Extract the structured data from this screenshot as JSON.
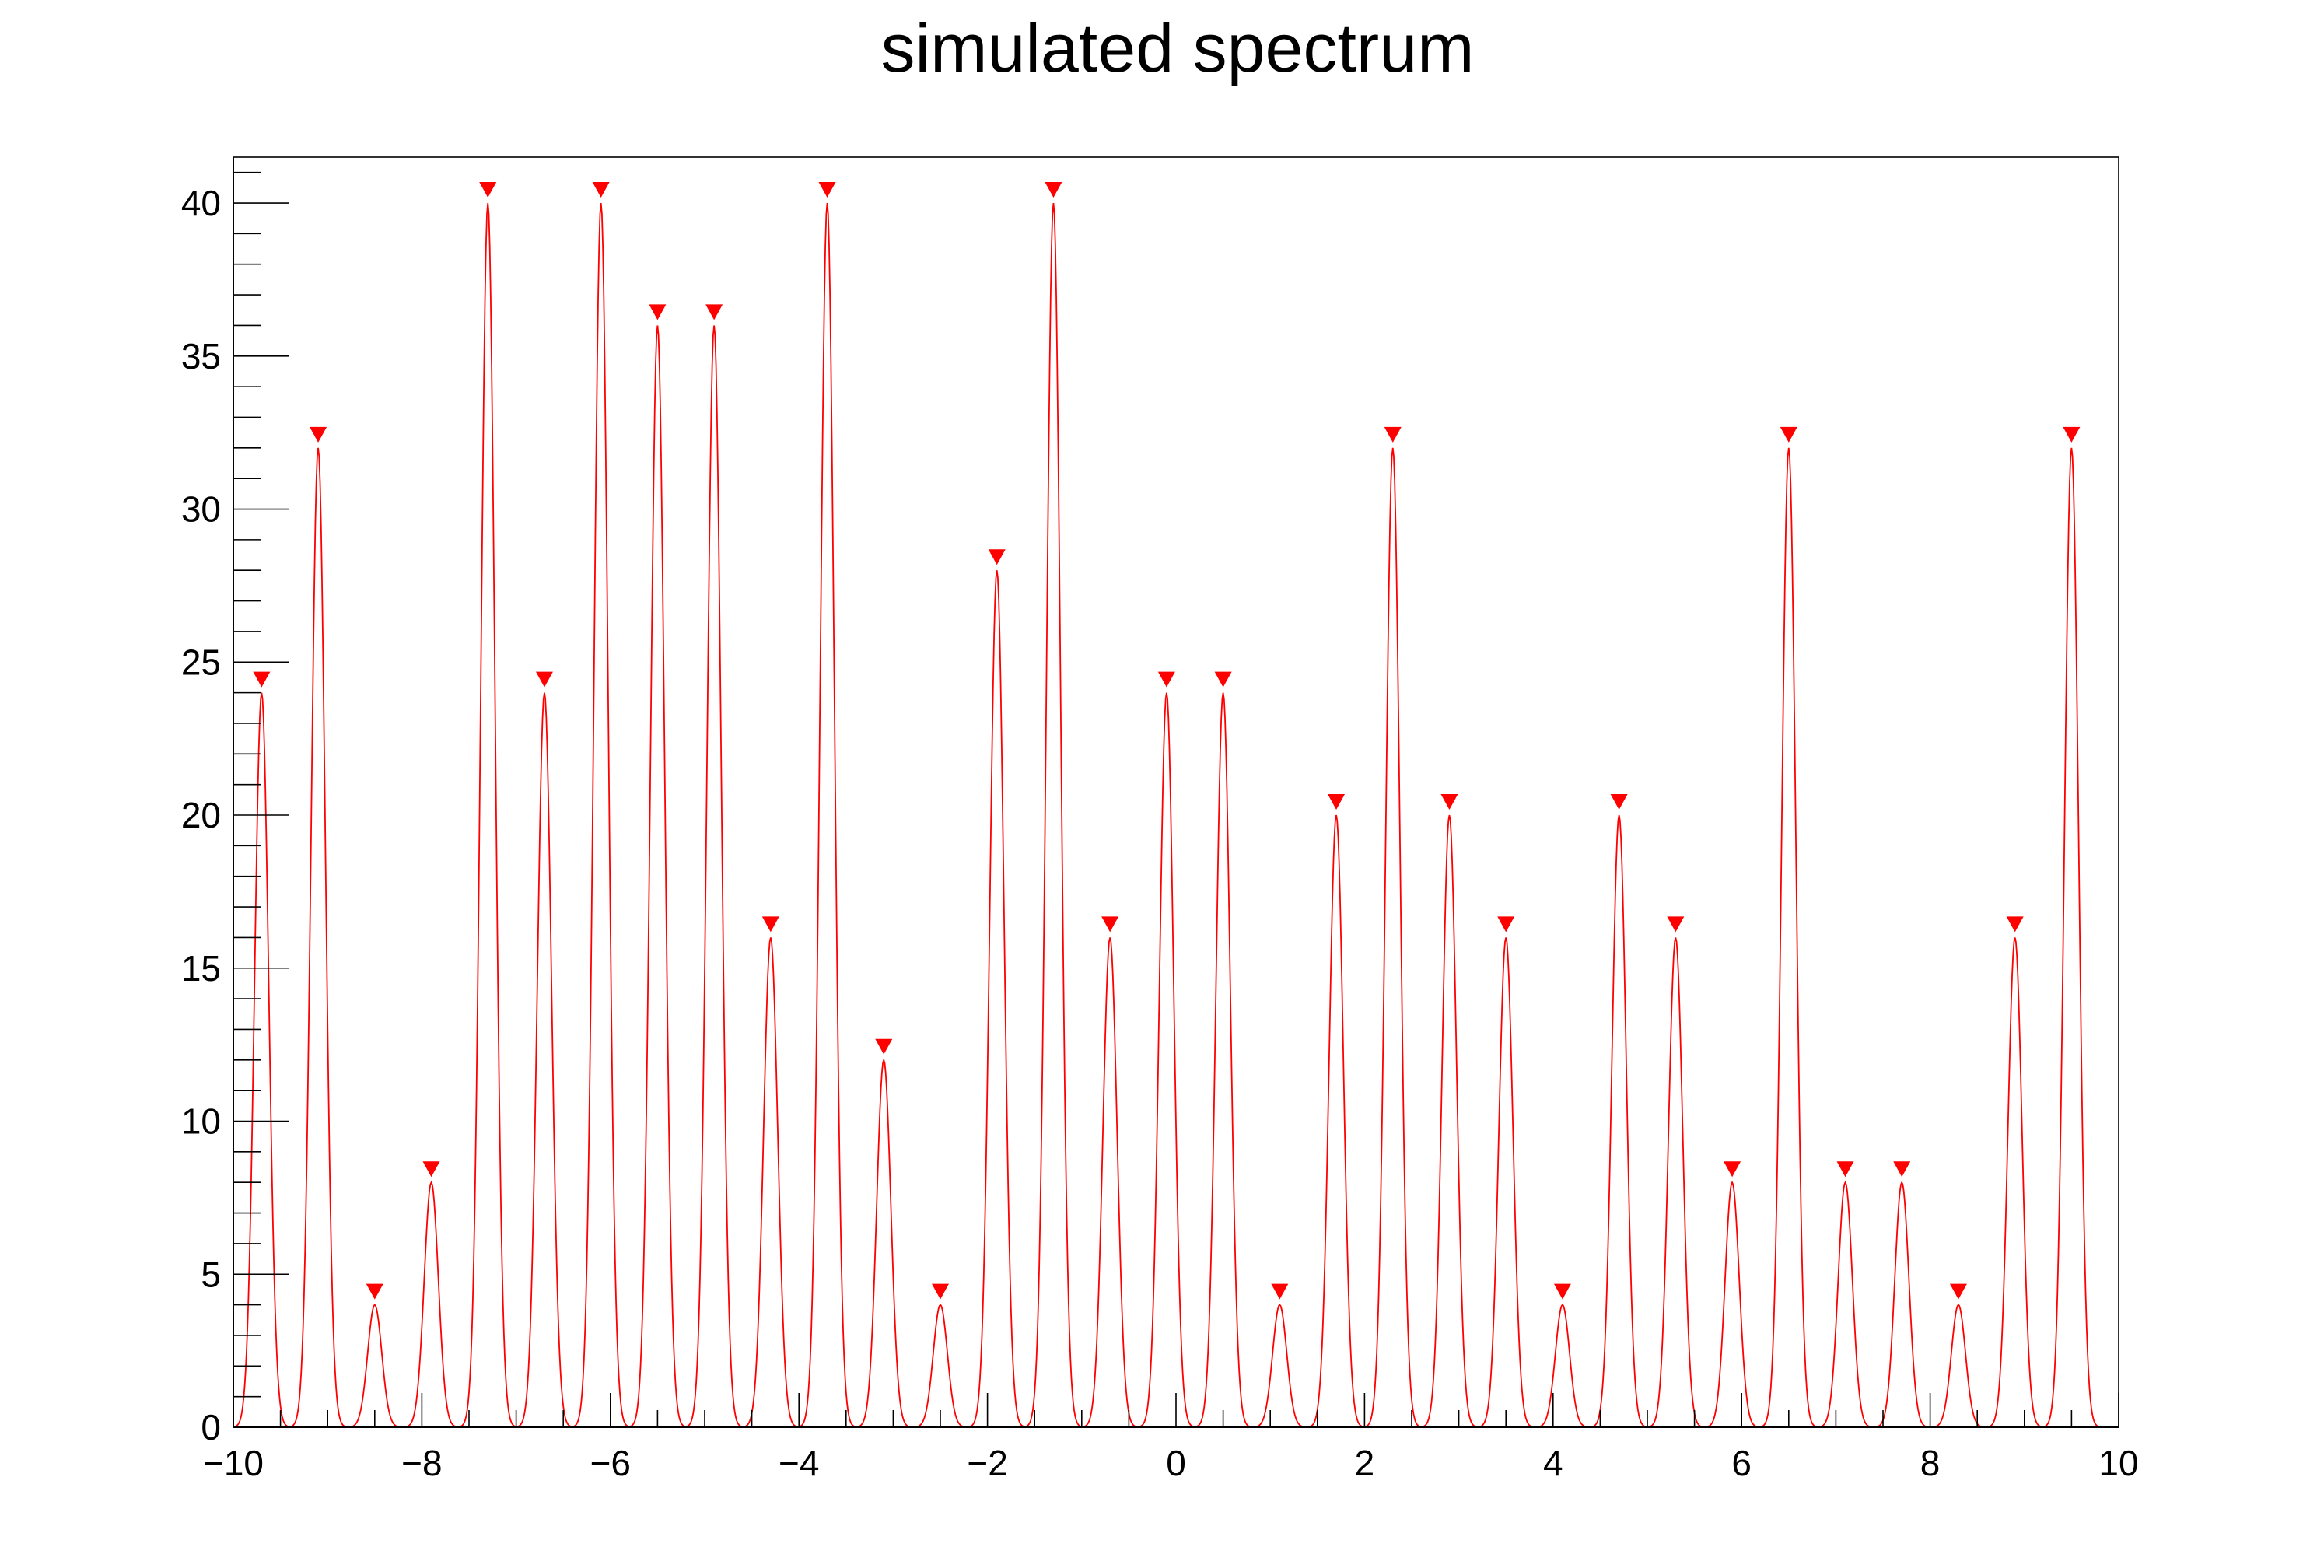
{
  "chart_data": {
    "type": "line",
    "title": "simulated spectrum",
    "xlabel": "",
    "ylabel": "",
    "xlim": [
      -10,
      10
    ],
    "ylim": [
      0,
      41.5
    ],
    "x_ticks": [
      -10,
      -8,
      -6,
      -4,
      -2,
      0,
      2,
      4,
      6,
      8,
      10
    ],
    "x_tick_labels": [
      "−10",
      "−8",
      "−6",
      "−4",
      "−2",
      "0",
      "2",
      "4",
      "6",
      "8",
      "10"
    ],
    "y_ticks": [
      0,
      5,
      10,
      15,
      20,
      25,
      30,
      35,
      40
    ],
    "y_tick_labels": [
      "0",
      "5",
      "10",
      "15",
      "20",
      "25",
      "30",
      "35",
      "40"
    ],
    "grid": false,
    "line_color": "#ff0000",
    "marker_color": "#ff0000",
    "peak_sigma": 0.075,
    "peaks": [
      {
        "x": -9.7,
        "y": 24
      },
      {
        "x": -9.1,
        "y": 32
      },
      {
        "x": -8.5,
        "y": 4
      },
      {
        "x": -7.9,
        "y": 8
      },
      {
        "x": -7.3,
        "y": 40
      },
      {
        "x": -6.7,
        "y": 24
      },
      {
        "x": -6.1,
        "y": 40
      },
      {
        "x": -5.5,
        "y": 36
      },
      {
        "x": -4.9,
        "y": 36
      },
      {
        "x": -4.3,
        "y": 16
      },
      {
        "x": -3.7,
        "y": 40
      },
      {
        "x": -3.1,
        "y": 12
      },
      {
        "x": -2.5,
        "y": 4
      },
      {
        "x": -1.9,
        "y": 28
      },
      {
        "x": -1.3,
        "y": 40
      },
      {
        "x": -0.7,
        "y": 16
      },
      {
        "x": -0.1,
        "y": 24
      },
      {
        "x": 0.5,
        "y": 24
      },
      {
        "x": 1.1,
        "y": 4
      },
      {
        "x": 1.7,
        "y": 20
      },
      {
        "x": 2.3,
        "y": 32
      },
      {
        "x": 2.9,
        "y": 20
      },
      {
        "x": 3.5,
        "y": 16
      },
      {
        "x": 4.1,
        "y": 4
      },
      {
        "x": 4.7,
        "y": 20
      },
      {
        "x": 5.3,
        "y": 16
      },
      {
        "x": 5.9,
        "y": 8
      },
      {
        "x": 6.5,
        "y": 32
      },
      {
        "x": 7.1,
        "y": 8
      },
      {
        "x": 7.7,
        "y": 8
      },
      {
        "x": 8.3,
        "y": 4
      },
      {
        "x": 8.9,
        "y": 16
      },
      {
        "x": 9.5,
        "y": 32
      }
    ]
  }
}
